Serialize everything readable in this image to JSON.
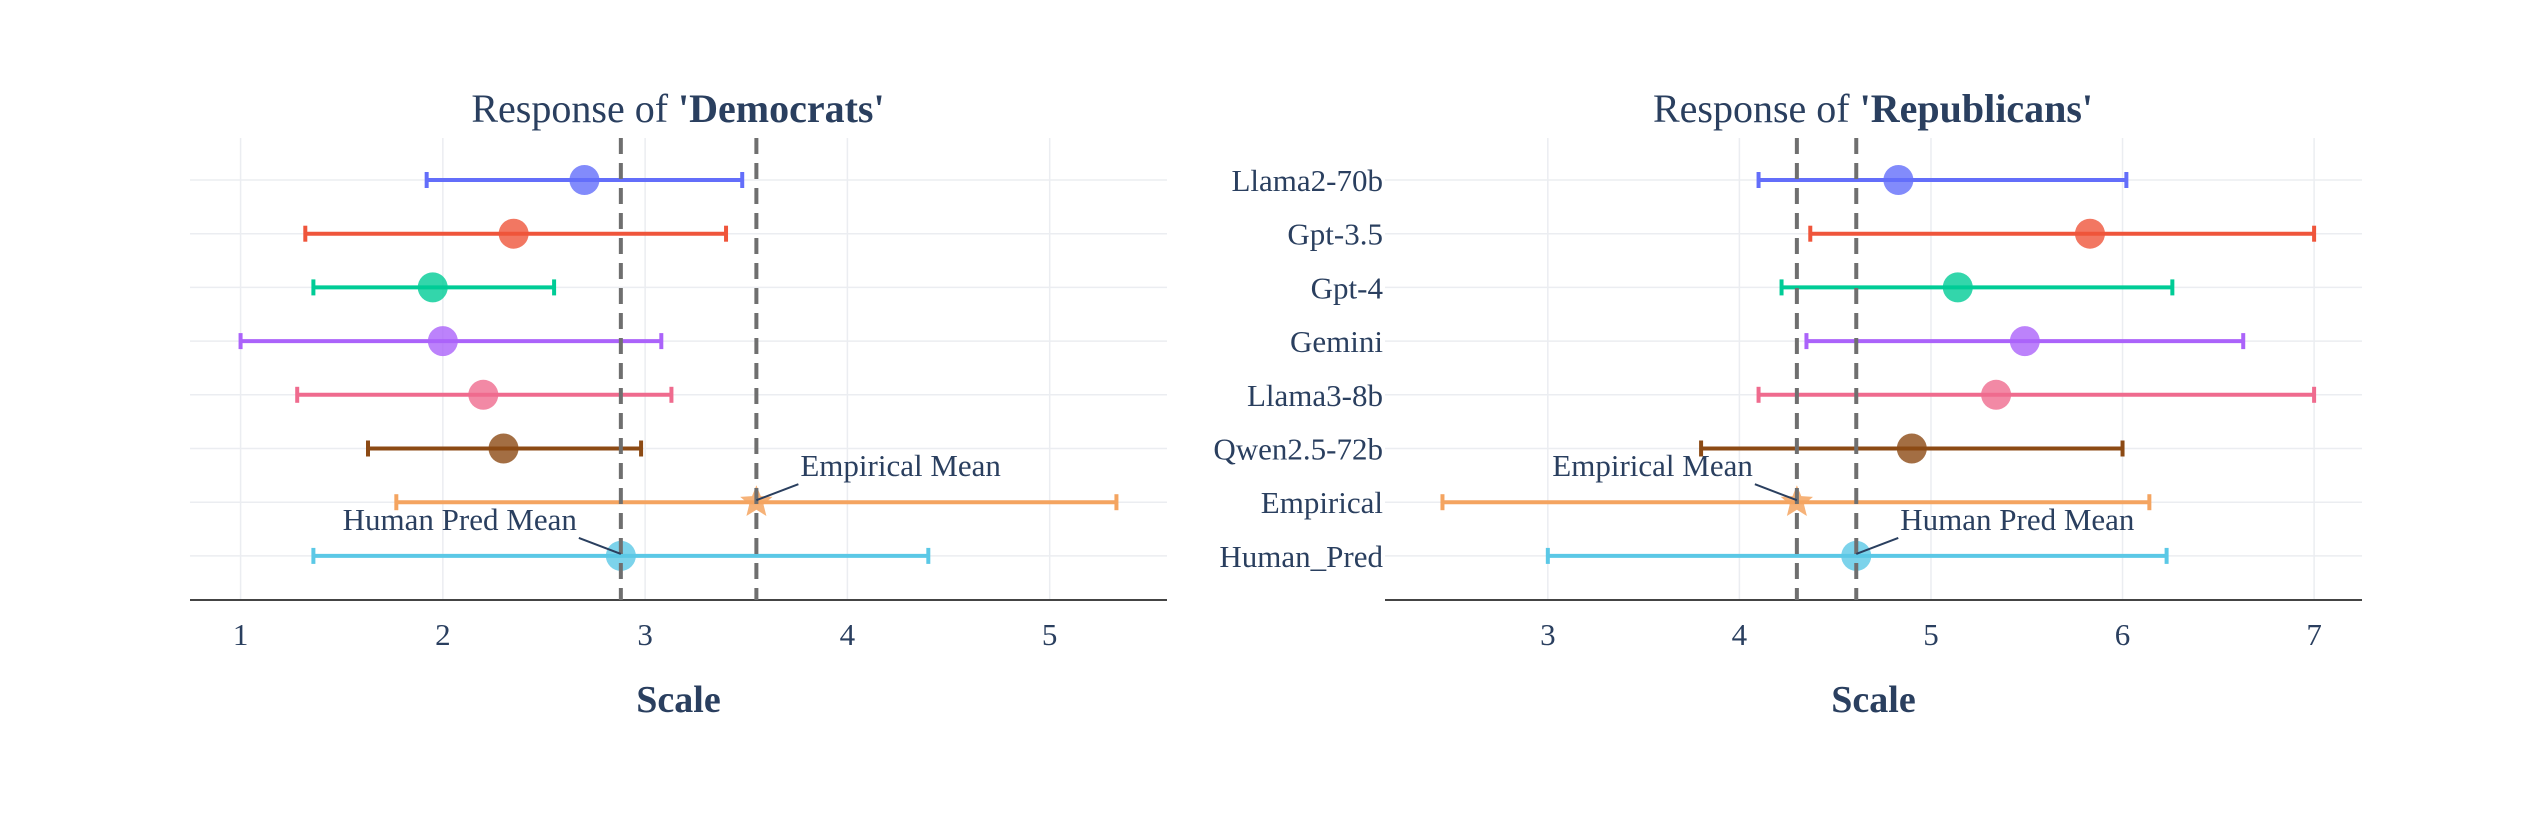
{
  "chart_data": [
    {
      "type": "errorbar",
      "title_prefix": "Response of ",
      "title_bold": "'Democrats'",
      "xlabel": "Scale",
      "xlim": [
        0.75,
        5.58
      ],
      "xticks": [
        1,
        2,
        3,
        4,
        5
      ],
      "show_category_labels": false,
      "categories": [
        "Llama2-70b",
        "Gpt-3.5",
        "Gpt-4",
        "Gemini",
        "Llama3-8b",
        "Qwen2.5-72b",
        "Empirical",
        "Human_Pred"
      ],
      "series": [
        {
          "name": "Llama2-70b",
          "mean": 2.7,
          "low": 1.92,
          "high": 3.48,
          "color": "#636efa",
          "marker": "circle"
        },
        {
          "name": "Gpt-3.5",
          "mean": 2.35,
          "low": 1.32,
          "high": 3.4,
          "color": "#ef553b",
          "marker": "circle"
        },
        {
          "name": "Gpt-4",
          "mean": 1.95,
          "low": 1.36,
          "high": 2.55,
          "color": "#00cc96",
          "marker": "circle"
        },
        {
          "name": "Gemini",
          "mean": 2.0,
          "low": 1.0,
          "high": 3.08,
          "color": "#ab63fa",
          "marker": "circle"
        },
        {
          "name": "Llama3-8b",
          "mean": 2.2,
          "low": 1.28,
          "high": 3.13,
          "color": "#ef6b8e",
          "marker": "circle"
        },
        {
          "name": "Qwen2.5-72b",
          "mean": 2.3,
          "low": 1.63,
          "high": 2.98,
          "color": "#8c4a14",
          "marker": "circle"
        },
        {
          "name": "Empirical",
          "mean": 3.55,
          "low": 1.77,
          "high": 5.33,
          "color": "#f4a460",
          "marker": "star"
        },
        {
          "name": "Human_Pred",
          "mean": 2.88,
          "low": 1.36,
          "high": 4.4,
          "color": "#5bc8e6",
          "marker": "circle"
        }
      ],
      "reference_lines": [
        {
          "value": 2.88
        },
        {
          "value": 3.55
        }
      ],
      "annotations": [
        {
          "text": "Empirical Mean",
          "category": "Empirical",
          "x": 3.55,
          "side": "right"
        },
        {
          "text": "Human Pred Mean",
          "category": "Human_Pred",
          "x": 2.88,
          "side": "left"
        }
      ]
    },
    {
      "type": "errorbar",
      "title_prefix": "Response of ",
      "title_bold": "'Republicans'",
      "xlabel": "Scale",
      "xlim": [
        2.15,
        7.25
      ],
      "xticks": [
        3,
        4,
        5,
        6,
        7
      ],
      "show_category_labels": true,
      "categories": [
        "Llama2-70b",
        "Gpt-3.5",
        "Gpt-4",
        "Gemini",
        "Llama3-8b",
        "Qwen2.5-72b",
        "Empirical",
        "Human_Pred"
      ],
      "series": [
        {
          "name": "Llama2-70b",
          "mean": 4.83,
          "low": 4.1,
          "high": 6.02,
          "color": "#636efa",
          "marker": "circle"
        },
        {
          "name": "Gpt-3.5",
          "mean": 5.83,
          "low": 4.37,
          "high": 7.0,
          "color": "#ef553b",
          "marker": "circle"
        },
        {
          "name": "Gpt-4",
          "mean": 5.14,
          "low": 4.22,
          "high": 6.26,
          "color": "#00cc96",
          "marker": "circle"
        },
        {
          "name": "Gemini",
          "mean": 5.49,
          "low": 4.35,
          "high": 6.63,
          "color": "#ab63fa",
          "marker": "circle"
        },
        {
          "name": "Llama3-8b",
          "mean": 5.34,
          "low": 4.1,
          "high": 7.0,
          "color": "#ef6b8e",
          "marker": "circle"
        },
        {
          "name": "Qwen2.5-72b",
          "mean": 4.9,
          "low": 3.8,
          "high": 6.0,
          "color": "#8c4a14",
          "marker": "circle"
        },
        {
          "name": "Empirical",
          "mean": 4.3,
          "low": 2.45,
          "high": 6.14,
          "color": "#f4a460",
          "marker": "star"
        },
        {
          "name": "Human_Pred",
          "mean": 4.61,
          "low": 3.0,
          "high": 6.23,
          "color": "#5bc8e6",
          "marker": "circle"
        }
      ],
      "reference_lines": [
        {
          "value": 4.3
        },
        {
          "value": 4.61
        }
      ],
      "annotations": [
        {
          "text": "Empirical Mean",
          "category": "Empirical",
          "x": 4.3,
          "side": "left"
        },
        {
          "text": "Human Pred Mean",
          "category": "Human_Pred",
          "x": 4.61,
          "side": "right"
        }
      ]
    }
  ]
}
